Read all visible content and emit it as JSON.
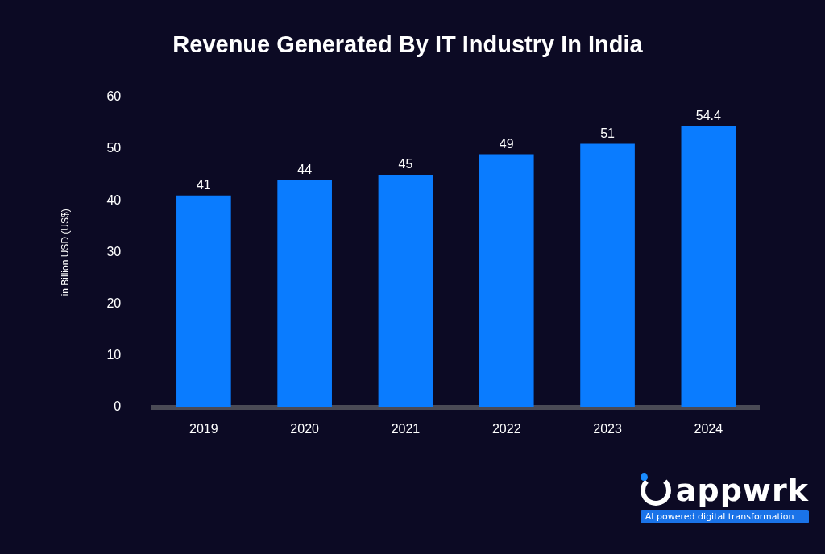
{
  "chart_data": {
    "type": "bar",
    "title": "Revenue Generated By IT Industry In India",
    "y_label": "in Billion USD (US$)",
    "categories": [
      "2019",
      "2020",
      "2021",
      "2022",
      "2023",
      "2024"
    ],
    "values": [
      41,
      44,
      45,
      49,
      51,
      54.4
    ],
    "color": "#0a7cff",
    "ylim": [
      0,
      60
    ],
    "yticks": [
      0,
      10,
      20,
      30,
      40,
      50,
      60
    ],
    "grid": false,
    "data_labels": true
  },
  "logo": {
    "text": "appwrk",
    "tagline": "AI powered digital transformation"
  }
}
